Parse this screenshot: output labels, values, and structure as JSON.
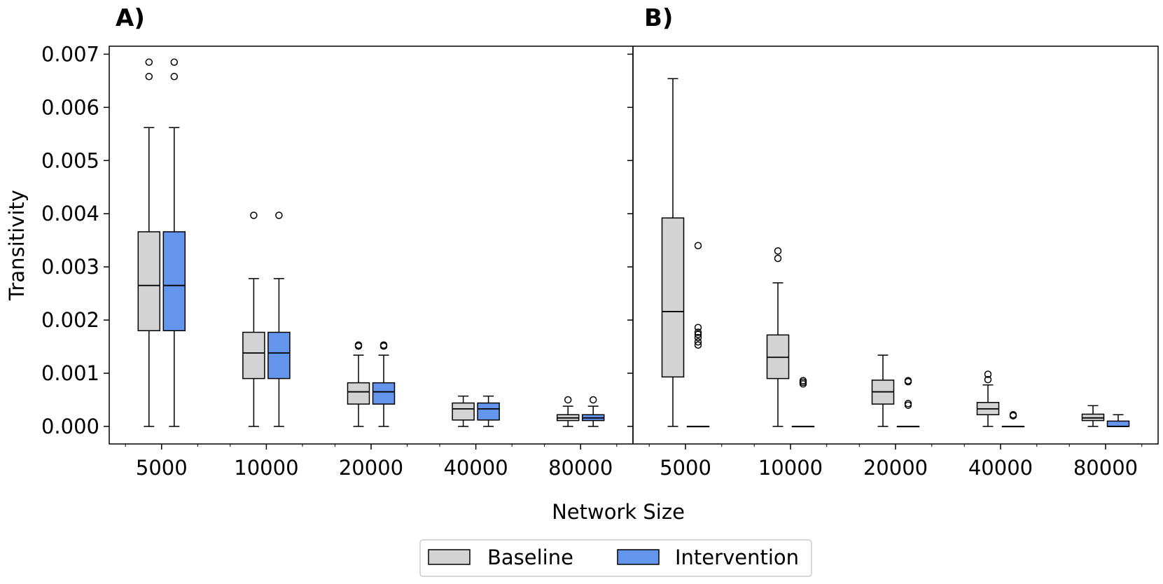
{
  "chart_data": {
    "type": "box",
    "ylabel": "Transitivity",
    "xlabel": "Network Size",
    "ylim": [
      -0.00033,
      0.00715
    ],
    "yticks": [
      "0.000",
      "0.001",
      "0.002",
      "0.003",
      "0.004",
      "0.005",
      "0.006",
      "0.007"
    ],
    "categories": [
      "5000",
      "10000",
      "20000",
      "40000",
      "80000"
    ],
    "legend": {
      "placement": "bottom-center",
      "items": [
        {
          "name": "Baseline",
          "color": "#d3d3d3"
        },
        {
          "name": "Intervention",
          "color": "#6495ed"
        }
      ]
    },
    "panels": [
      {
        "label": "A)",
        "series": [
          {
            "name": "Baseline",
            "color": "#d3d3d3",
            "boxes": [
              {
                "whislo": 0.0,
                "q1": 0.0018,
                "med": 0.00265,
                "q3": 0.00366,
                "whishi": 0.00562,
                "fliers": [
                  0.00658,
                  0.00685
                ]
              },
              {
                "whislo": 0.0,
                "q1": 0.0009,
                "med": 0.00138,
                "q3": 0.00177,
                "whishi": 0.00278,
                "fliers": [
                  0.00397
                ]
              },
              {
                "whislo": 0.0,
                "q1": 0.00042,
                "med": 0.00065,
                "q3": 0.00082,
                "whishi": 0.00134,
                "fliers": [
                  0.00151,
                  0.00153
                ]
              },
              {
                "whislo": 0.0,
                "q1": 0.00012,
                "med": 0.00033,
                "q3": 0.00044,
                "whishi": 0.00057,
                "fliers": []
              },
              {
                "whislo": 0.0,
                "q1": 0.00011,
                "med": 0.00016,
                "q3": 0.00022,
                "whishi": 0.00038,
                "fliers": [
                  0.0005
                ]
              }
            ]
          },
          {
            "name": "Intervention",
            "color": "#6495ed",
            "boxes": [
              {
                "whislo": 0.0,
                "q1": 0.0018,
                "med": 0.00265,
                "q3": 0.00366,
                "whishi": 0.00562,
                "fliers": [
                  0.00658,
                  0.00685
                ]
              },
              {
                "whislo": 0.0,
                "q1": 0.0009,
                "med": 0.00138,
                "q3": 0.00177,
                "whishi": 0.00278,
                "fliers": [
                  0.00397
                ]
              },
              {
                "whislo": 0.0,
                "q1": 0.00042,
                "med": 0.00065,
                "q3": 0.00082,
                "whishi": 0.00134,
                "fliers": [
                  0.00151,
                  0.00153
                ]
              },
              {
                "whislo": 0.0,
                "q1": 0.00012,
                "med": 0.00033,
                "q3": 0.00044,
                "whishi": 0.00057,
                "fliers": []
              },
              {
                "whislo": 0.0,
                "q1": 0.00011,
                "med": 0.00016,
                "q3": 0.00022,
                "whishi": 0.00038,
                "fliers": [
                  0.0005
                ]
              }
            ]
          }
        ]
      },
      {
        "label": "B)",
        "series": [
          {
            "name": "Baseline",
            "color": "#d3d3d3",
            "boxes": [
              {
                "whislo": 0.0,
                "q1": 0.00093,
                "med": 0.00216,
                "q3": 0.00392,
                "whishi": 0.00654,
                "fliers": []
              },
              {
                "whislo": 0.0,
                "q1": 0.0009,
                "med": 0.0013,
                "q3": 0.00172,
                "whishi": 0.0027,
                "fliers": [
                  0.00316,
                  0.0033
                ]
              },
              {
                "whislo": 0.0,
                "q1": 0.00042,
                "med": 0.00065,
                "q3": 0.00087,
                "whishi": 0.00134,
                "fliers": []
              },
              {
                "whislo": 0.0,
                "q1": 0.00022,
                "med": 0.00033,
                "q3": 0.00045,
                "whishi": 0.00078,
                "fliers": [
                  0.00088,
                  0.00098
                ]
              },
              {
                "whislo": 0.0,
                "q1": 0.00011,
                "med": 0.00016,
                "q3": 0.00023,
                "whishi": 0.00039,
                "fliers": []
              }
            ]
          },
          {
            "name": "Intervention",
            "color": "#6495ed",
            "boxes": [
              {
                "whislo": 0.0,
                "q1": 0.0,
                "med": 0.0,
                "q3": 0.0,
                "whishi": 0.0,
                "fliers": [
                  0.00153,
                  0.00159,
                  0.00167,
                  0.00173,
                  0.00177,
                  0.00186,
                  0.0034
                ]
              },
              {
                "whislo": 0.0,
                "q1": 0.0,
                "med": 0.0,
                "q3": 0.0,
                "whishi": 0.0,
                "fliers": [
                  0.0008,
                  0.00083,
                  0.00086
                ]
              },
              {
                "whislo": 0.0,
                "q1": 0.0,
                "med": 0.0,
                "q3": 0.0,
                "whishi": 0.0,
                "fliers": [
                  0.0004,
                  0.00043,
                  0.00084,
                  0.00086
                ]
              },
              {
                "whislo": 0.0,
                "q1": 0.0,
                "med": 0.0,
                "q3": 0.0,
                "whishi": 0.0,
                "fliers": [
                  0.0002,
                  0.00022
                ]
              },
              {
                "whislo": 0.0,
                "q1": 0.0,
                "med": 0.0,
                "q3": 0.0001,
                "whishi": 0.00022,
                "fliers": []
              }
            ]
          }
        ]
      }
    ]
  }
}
